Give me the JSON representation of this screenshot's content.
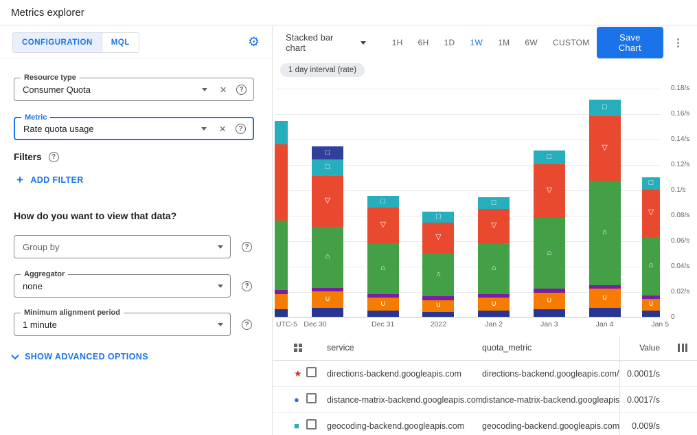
{
  "header": {
    "title": "Metrics explorer"
  },
  "panel": {
    "tabs": [
      {
        "label": "CONFIGURATION",
        "active": true
      },
      {
        "label": "MQL",
        "active": false
      }
    ],
    "resource_type": {
      "label": "Resource type",
      "value": "Consumer Quota"
    },
    "metric": {
      "label": "Metric",
      "value": "Rate quota usage"
    },
    "filters_label": "Filters",
    "add_filter_label": "ADD FILTER",
    "view_question": "How do you want to view that data?",
    "group_by": {
      "placeholder": "Group by"
    },
    "aggregator": {
      "label": "Aggregator",
      "value": "none"
    },
    "min_alignment": {
      "label": "Minimum alignment period",
      "value": "1 minute"
    },
    "advanced_label": "SHOW ADVANCED OPTIONS"
  },
  "toolbar": {
    "chart_type": "Stacked bar chart",
    "ranges": [
      "1H",
      "6H",
      "1D",
      "1W",
      "1M",
      "6W",
      "CUSTOM"
    ],
    "active_range": "1W",
    "save_label": "Save Chart"
  },
  "chip": "1 day interval (rate)",
  "chart_data": {
    "type": "bar",
    "stacked": true,
    "title": "",
    "x_axis_timezone": "UTC-5",
    "categories": [
      "Dec 30",
      "Dec 31",
      "2022",
      "Jan 2",
      "Jan 3",
      "Jan 4",
      "Jan 5"
    ],
    "unit": "/s",
    "ylim": [
      0,
      0.185
    ],
    "yticks": [
      {
        "v": 0.18,
        "label": "0.18/s"
      },
      {
        "v": 0.16,
        "label": "0.16/s"
      },
      {
        "v": 0.14,
        "label": "0.14/s"
      },
      {
        "v": 0.12,
        "label": "0.12/s"
      },
      {
        "v": 0.1,
        "label": "0.1/s"
      },
      {
        "v": 0.08,
        "label": "0.08/s"
      },
      {
        "v": 0.06,
        "label": "0.06/s"
      },
      {
        "v": 0.04,
        "label": "0.04/s"
      },
      {
        "v": 0.02,
        "label": "0.02/s"
      },
      {
        "v": 0,
        "label": "0"
      }
    ],
    "series": [
      {
        "name": "base-navy",
        "color": "#283593",
        "marker": null,
        "values": [
          0.007,
          0.005,
          0.004,
          0.005,
          0.006,
          0.007,
          0.005
        ],
        "partial": 0.006
      },
      {
        "name": "orange",
        "color": "#f57c00",
        "marker": "∪",
        "values": [
          0.013,
          0.01,
          0.009,
          0.01,
          0.013,
          0.015,
          0.009
        ],
        "partial": 0.012
      },
      {
        "name": "purple",
        "color": "#7b1fa2",
        "marker": null,
        "values": [
          0.003,
          0.003,
          0.003,
          0.003,
          0.003,
          0.003,
          0.003
        ],
        "partial": 0.003
      },
      {
        "name": "green",
        "color": "#43a047",
        "marker": "⌂",
        "values": [
          0.048,
          0.04,
          0.034,
          0.04,
          0.056,
          0.082,
          0.046
        ],
        "partial": 0.055
      },
      {
        "name": "red",
        "color": "#e8492f",
        "marker": "▽",
        "values": [
          0.04,
          0.028,
          0.024,
          0.027,
          0.042,
          0.051,
          0.037
        ],
        "partial": 0.06
      },
      {
        "name": "teal",
        "color": "#27aebc",
        "marker": "□",
        "values": [
          0.013,
          0.009,
          0.009,
          0.009,
          0.011,
          0.013,
          0.01
        ],
        "partial": 0.018
      },
      {
        "name": "cap-blue",
        "color": "#30409b",
        "marker": "□",
        "values": [
          0.01,
          0,
          0,
          0,
          0,
          0,
          0
        ],
        "partial": 0
      }
    ]
  },
  "table": {
    "columns": [
      "service",
      "quota_metric",
      "Value"
    ],
    "rows": [
      {
        "marker_glyph": "★",
        "marker_color": "#d93025",
        "service": "directions-backend.googleapis.com",
        "quota_metric": "directions-backend.googleapis.com/billabl",
        "value": "0.0001/s"
      },
      {
        "marker_glyph": "●",
        "marker_color": "#1a73e8",
        "service": "distance-matrix-backend.googleapis.com",
        "quota_metric": "distance-matrix-backend.googleapis.com/b",
        "value": "0.0017/s"
      },
      {
        "marker_glyph": "■",
        "marker_color": "#27aebc",
        "service": "geocoding-backend.googleapis.com",
        "quota_metric": "geocoding-backend.googleapis.com/billab",
        "value": "0.009/s"
      }
    ]
  },
  "colors": {
    "accent": "#1a73e8"
  }
}
